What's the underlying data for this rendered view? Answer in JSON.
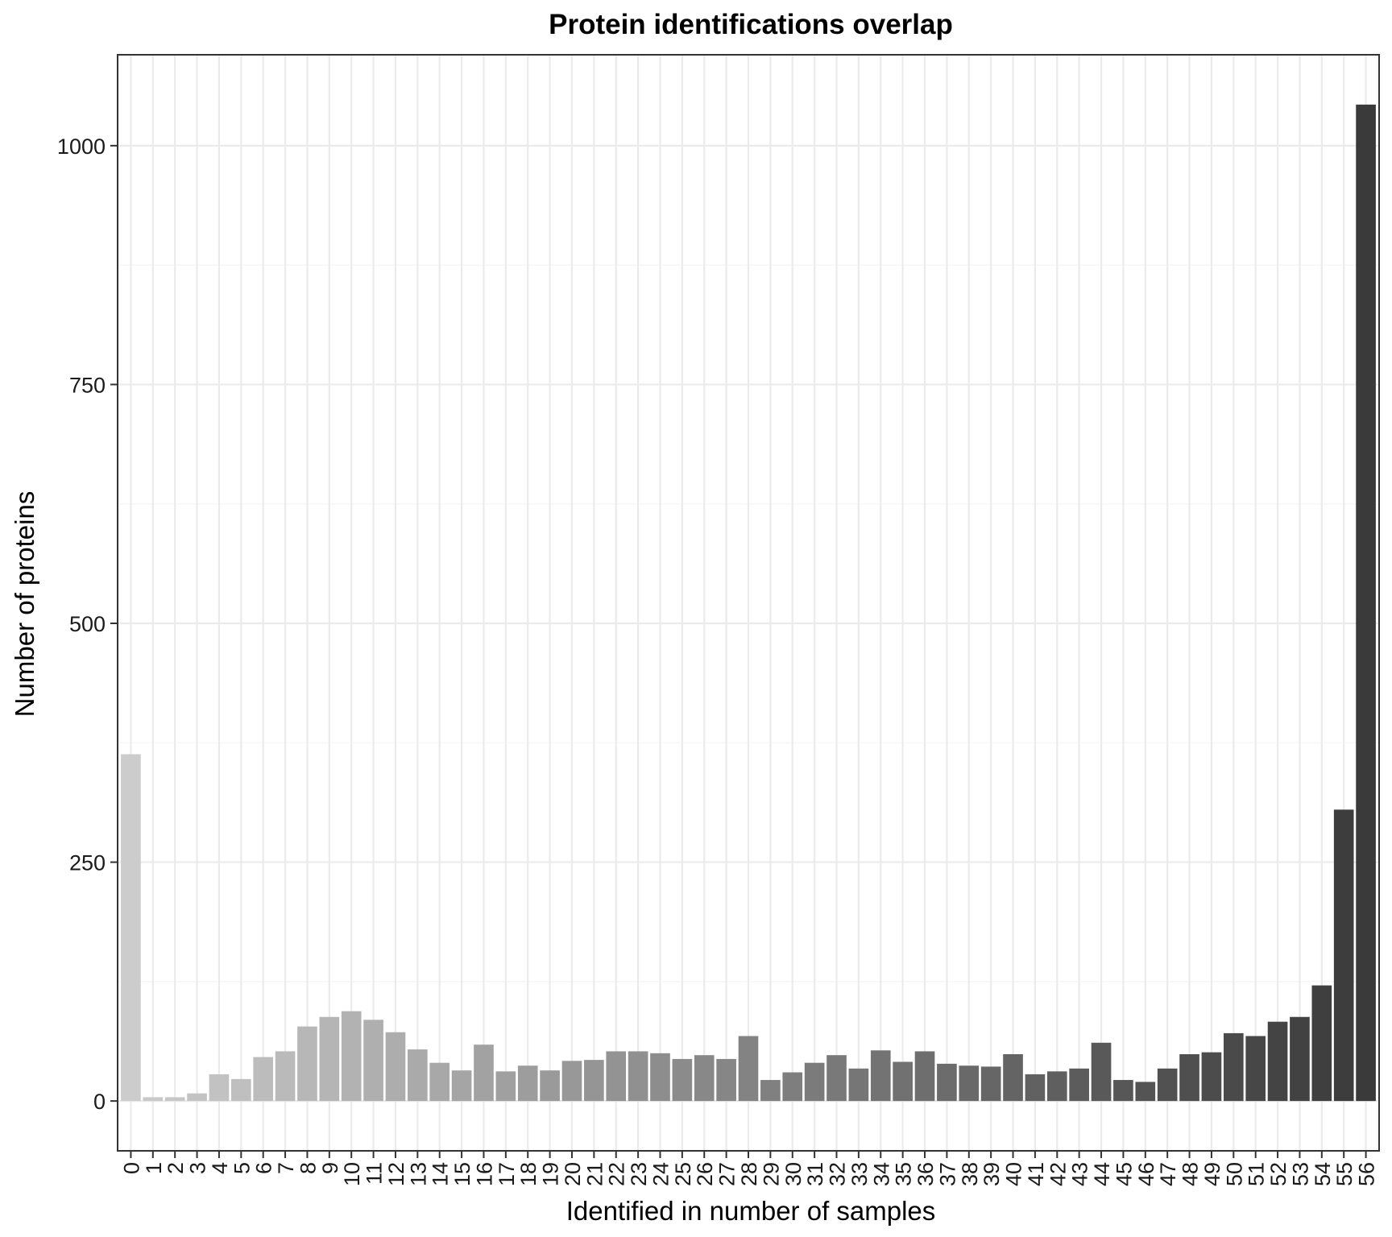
{
  "chart_data": {
    "type": "bar",
    "title": "Protein identifications overlap",
    "xlabel": "Identified in number of samples",
    "ylabel": "Number of proteins",
    "categories": [
      "0",
      "1",
      "2",
      "3",
      "4",
      "5",
      "6",
      "7",
      "8",
      "9",
      "10",
      "11",
      "12",
      "13",
      "14",
      "15",
      "16",
      "17",
      "18",
      "19",
      "20",
      "21",
      "22",
      "23",
      "24",
      "25",
      "26",
      "27",
      "28",
      "29",
      "30",
      "31",
      "32",
      "33",
      "34",
      "35",
      "36",
      "37",
      "38",
      "39",
      "40",
      "41",
      "42",
      "43",
      "44",
      "45",
      "46",
      "47",
      "48",
      "49",
      "50",
      "51",
      "52",
      "53",
      "54",
      "55",
      "56"
    ],
    "values": [
      363,
      4,
      4,
      8,
      28,
      23,
      46,
      52,
      78,
      88,
      94,
      85,
      72,
      54,
      40,
      32,
      59,
      31,
      37,
      32,
      42,
      43,
      52,
      52,
      50,
      44,
      48,
      44,
      68,
      22,
      30,
      40,
      48,
      34,
      53,
      41,
      52,
      39,
      37,
      36,
      49,
      28,
      31,
      34,
      61,
      22,
      20,
      34,
      49,
      51,
      71,
      68,
      83,
      88,
      121,
      305,
      1043
    ],
    "y_ticks": [
      0,
      250,
      500,
      750,
      1000
    ],
    "ylim": [
      -52.15,
      1095.15
    ],
    "grid": true,
    "legend": "none",
    "colors": {
      "bar_light": "#cccccc",
      "bar_dark": "#3a3a3a",
      "grid_major": "#ebebeb",
      "grid_minor": "#f4f4f4",
      "panel_border": "#333333"
    }
  }
}
